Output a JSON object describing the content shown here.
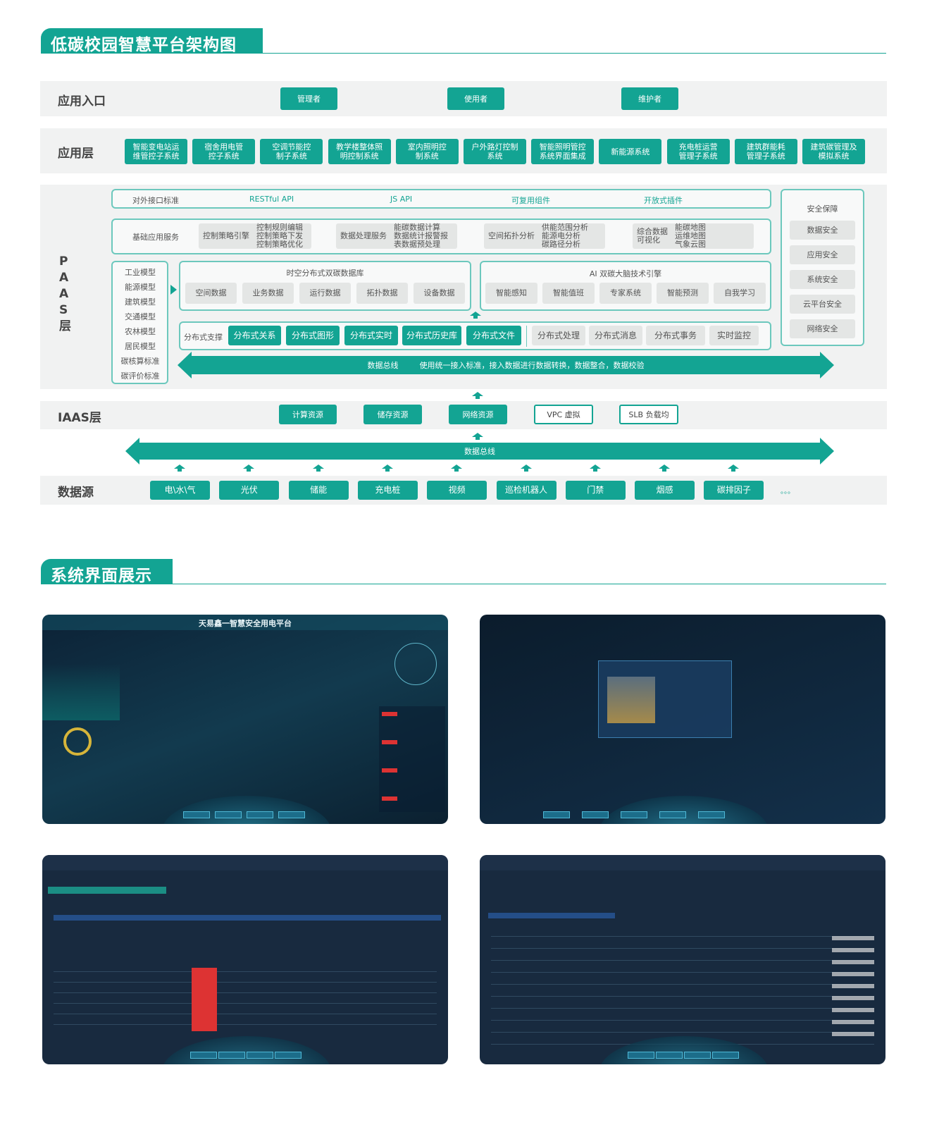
{
  "section1": {
    "title": "低碳校园智慧平台架构图"
  },
  "entry": {
    "label": "应用入口",
    "buttons": [
      "管理者",
      "使用者",
      "维护者"
    ]
  },
  "app_layer": {
    "label": "应用层",
    "items": [
      "智能变电站运\n维管控子系统",
      "宿舍用电管\n控子系统",
      "空调节能控\n制子系统",
      "教学楼整体照\n明控制系统",
      "室内照明控\n制系统",
      "户外路灯控制\n系统",
      "智能照明管控\n系统界面集成",
      "新能源系统",
      "充电桩运营\n管理子系统",
      "建筑群能耗\n管理子系统",
      "建筑碳管理及\n模拟系统"
    ]
  },
  "paas": {
    "label": "P A A S 层",
    "interface": {
      "label": "对外接口标准",
      "items": [
        "RESTful API",
        "JS API",
        "可复用组件",
        "开放式插件"
      ]
    },
    "basic": {
      "label": "基础应用服务",
      "groups": [
        {
          "name": "控制策略引擎",
          "items": "控制规则编辑\n控制策略下发\n控制策略优化"
        },
        {
          "name": "数据处理服务",
          "items": "能碳数据计算\n数据统计报警报\n表数据预处理"
        },
        {
          "name": "空间拓扑分析",
          "items": "供能范围分析\n能源电分析\n碳路径分析"
        },
        {
          "name": "综合数据\n可视化",
          "items": "能碳地图\n运维地图\n气象云图"
        }
      ]
    },
    "models": [
      "工业模型",
      "能源模型",
      "建筑模型",
      "交通模型",
      "农林模型",
      "居民模型",
      "碳核算标准",
      "碳评价标准"
    ],
    "spatiotemporal_db": {
      "title": "时空分布式双碳数据库",
      "items": [
        "空间数据",
        "业务数据",
        "运行数据",
        "拓扑数据",
        "设备数据"
      ]
    },
    "ai_engine": {
      "title": "AI 双碳大脑技术引擎",
      "items": [
        "智能感知",
        "智能值班",
        "专家系统",
        "智能预测",
        "自我学习"
      ]
    },
    "distributed": {
      "label": "分布式支撑",
      "highlighted": [
        "分布式关系",
        "分布式图形",
        "分布式实时",
        "分布式历史库",
        "分布式文件"
      ],
      "others": [
        "分布式处理",
        "分布式消息",
        "分布式事务",
        "实时监控"
      ]
    },
    "bus": {
      "label": "数据总线",
      "desc": "使用统一接入标准，接入数据进行数据转换，数据整合，数据校验"
    },
    "security": {
      "title": "安全保障",
      "items": [
        "数据安全",
        "应用安全",
        "系统安全",
        "云平台安全",
        "网络安全"
      ]
    }
  },
  "iaas": {
    "label": "IAAS层",
    "filled": [
      "计算资源",
      "储存资源",
      "网络资源"
    ],
    "outlined": [
      "VPC 虚拟",
      "SLB 负载均"
    ]
  },
  "bus2": {
    "label": "数据总线"
  },
  "datasource": {
    "label": "数据源",
    "items": [
      "电\\水\\气",
      "光伏",
      "储能",
      "充电桩",
      "视频",
      "巡检机器人",
      "门禁",
      "烟感",
      "碳排因子"
    ],
    "more": "。。。"
  },
  "section2": {
    "title": "系统界面展示"
  },
  "screens": [
    {
      "title": "天易鑫一智慧安全用电平台"
    }
  ],
  "colors": {
    "accent": "#13a493",
    "panel": "#f1f2f2",
    "chip": "#e4e6e5"
  }
}
